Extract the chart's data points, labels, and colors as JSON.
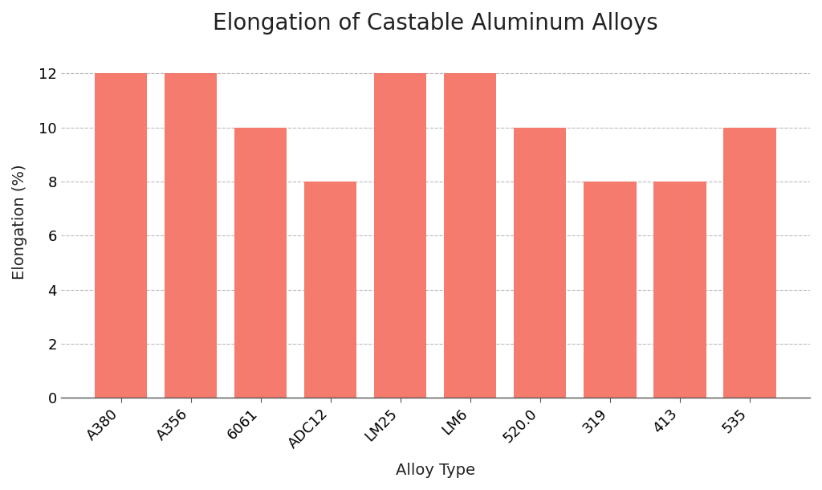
{
  "title": "Elongation of Castable Aluminum Alloys",
  "xlabel": "Alloy Type",
  "ylabel": "Elongation (%)",
  "categories": [
    "A380",
    "A356",
    "6061",
    "ADC12",
    "LM25",
    "LM6",
    "520.0",
    "319",
    "413",
    "535"
  ],
  "values": [
    12,
    12,
    10,
    8,
    12,
    12,
    10,
    8,
    8,
    10
  ],
  "bar_color": "#F47B6E",
  "background_color": "#FFFFFF",
  "ylim": [
    0,
    13
  ],
  "yticks": [
    0,
    2,
    4,
    6,
    8,
    10,
    12
  ],
  "grid_color": "#BBBBBB",
  "grid_linestyle": "--",
  "title_fontsize": 20,
  "label_fontsize": 14,
  "tick_fontsize": 13,
  "bar_width": 0.75,
  "xlabel_rotation": 45
}
